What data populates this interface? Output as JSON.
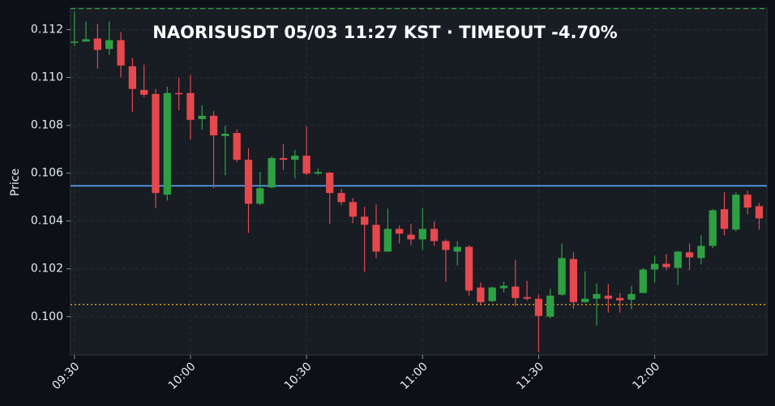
{
  "chart_data": {
    "type": "candlestick",
    "title": "NAORISUSDT  05/03 11:27 KST  ·  TIMEOUT -4.70%",
    "y_label": "Price",
    "x": [
      "09:30",
      "09:33",
      "09:36",
      "09:39",
      "09:42",
      "09:45",
      "09:48",
      "09:51",
      "09:54",
      "09:57",
      "10:00",
      "10:03",
      "10:06",
      "10:09",
      "10:12",
      "10:15",
      "10:18",
      "10:21",
      "10:24",
      "10:27",
      "10:30",
      "10:33",
      "10:36",
      "10:39",
      "10:42",
      "10:45",
      "10:48",
      "10:51",
      "10:54",
      "10:57",
      "11:00",
      "11:03",
      "11:06",
      "11:09",
      "11:12",
      "11:15",
      "11:18",
      "11:21",
      "11:24",
      "11:27",
      "11:30",
      "11:33",
      "11:36",
      "11:39",
      "11:42",
      "11:45",
      "11:48",
      "11:51",
      "11:54",
      "11:57",
      "12:00",
      "12:03",
      "12:06",
      "12:09",
      "12:12",
      "12:15",
      "12:18",
      "12:21",
      "12:24",
      "12:27"
    ],
    "open": [
      0.1115,
      0.1115,
      0.11163,
      0.11119,
      0.11156,
      0.11047,
      0.10948,
      0.10931,
      0.1051,
      0.10935,
      0.10935,
      0.10826,
      0.1084,
      0.10755,
      0.10768,
      0.10656,
      0.10472,
      0.1054,
      0.10663,
      0.10656,
      0.10673,
      0.10598,
      0.10602,
      0.10517,
      0.10479,
      0.10418,
      0.10384,
      0.10272,
      0.10367,
      0.10343,
      0.10323,
      0.10367,
      0.10316,
      0.10272,
      0.10292,
      0.10122,
      0.10065,
      0.10119,
      0.10126,
      0.10082,
      0.10075,
      0.1,
      0.10092,
      0.10241,
      0.10061,
      0.10075,
      0.10088,
      0.10078,
      0.10071,
      0.10099,
      0.10197,
      0.10221,
      0.10204,
      0.10269,
      0.10245,
      0.10296,
      0.10449,
      0.10364,
      0.1051,
      0.10462
    ],
    "high": [
      0.11275,
      0.11234,
      0.11224,
      0.11234,
      0.1119,
      0.11081,
      0.11054,
      0.10952,
      0.10962,
      0.11,
      0.1101,
      0.10884,
      0.1086,
      0.10799,
      0.10782,
      0.10704,
      0.10605,
      0.1067,
      0.10721,
      0.10697,
      0.10795,
      0.10619,
      0.10605,
      0.10534,
      0.10496,
      0.10459,
      0.10469,
      0.10452,
      0.10381,
      0.10388,
      0.10455,
      0.10398,
      0.10323,
      0.10316,
      0.10299,
      0.10143,
      0.10126,
      0.10146,
      0.10238,
      0.1015,
      0.10092,
      0.10116,
      0.10306,
      0.10269,
      0.1019,
      0.10139,
      0.10136,
      0.10099,
      0.10129,
      0.10204,
      0.10255,
      0.10262,
      0.10275,
      0.10306,
      0.1034,
      0.10449,
      0.1052,
      0.1052,
      0.10527,
      0.10476
    ],
    "low": [
      0.11132,
      0.1115,
      0.11037,
      0.11095,
      0.11,
      0.10857,
      0.10918,
      0.10455,
      0.10486,
      0.10863,
      0.10741,
      0.10782,
      0.10537,
      0.10591,
      0.10646,
      0.1035,
      0.10466,
      0.10537,
      0.10612,
      0.10578,
      0.10592,
      0.10592,
      0.10388,
      0.10466,
      0.10391,
      0.10187,
      0.10245,
      0.10272,
      0.10306,
      0.10299,
      0.10279,
      0.10296,
      0.10146,
      0.10214,
      0.10088,
      0.10051,
      0.10061,
      0.10102,
      0.10044,
      0.10068,
      0.09854,
      0.09993,
      0.10088,
      0.10034,
      0.10058,
      0.09963,
      0.10017,
      0.10017,
      0.10031,
      0.10099,
      0.10143,
      0.10194,
      0.10133,
      0.10194,
      0.10218,
      0.10286,
      0.1034,
      0.10357,
      0.10428,
      0.10364
    ],
    "close": [
      0.1115,
      0.1116,
      0.11115,
      0.11156,
      0.1105,
      0.10952,
      0.10928,
      0.10517,
      0.10935,
      0.10932,
      0.10823,
      0.1084,
      0.10758,
      0.10765,
      0.10656,
      0.10472,
      0.10537,
      0.10663,
      0.10656,
      0.10673,
      0.10598,
      0.10605,
      0.10517,
      0.10479,
      0.10418,
      0.10384,
      0.10272,
      0.10367,
      0.10347,
      0.10323,
      0.10367,
      0.10316,
      0.10279,
      0.10292,
      0.10109,
      0.10061,
      0.10122,
      0.10129,
      0.10078,
      0.10075,
      0.10003,
      0.10088,
      0.10245,
      0.10061,
      0.10075,
      0.10095,
      0.10075,
      0.10068,
      0.10095,
      0.10197,
      0.10221,
      0.10207,
      0.10272,
      0.10248,
      0.10296,
      0.10445,
      0.10367,
      0.1051,
      0.10456,
      0.10411
    ],
    "up_color": "#2ea043",
    "down_color": "#e5484d",
    "xlim": [
      "09:29",
      "12:29"
    ],
    "xticks": [
      "09:30",
      "10:00",
      "10:30",
      "11:00",
      "11:30",
      "12:00"
    ],
    "ylim": [
      0.0984,
      0.1129
    ],
    "yticks": [
      {
        "value": 0.1,
        "label": "0.100"
      },
      0.102,
      0.104,
      0.106,
      0.108,
      {
        "value": 0.11,
        "label": "0.110"
      },
      0.112
    ],
    "grid": true,
    "reference_lines": [
      {
        "value": 0.10547,
        "color": "#58a6ff",
        "style": "solid"
      },
      {
        "value": 0.10051,
        "color": "#f0b429",
        "style": "dotted"
      },
      {
        "value": 0.11288,
        "color": "#2ea043",
        "style": "dashed"
      }
    ]
  }
}
